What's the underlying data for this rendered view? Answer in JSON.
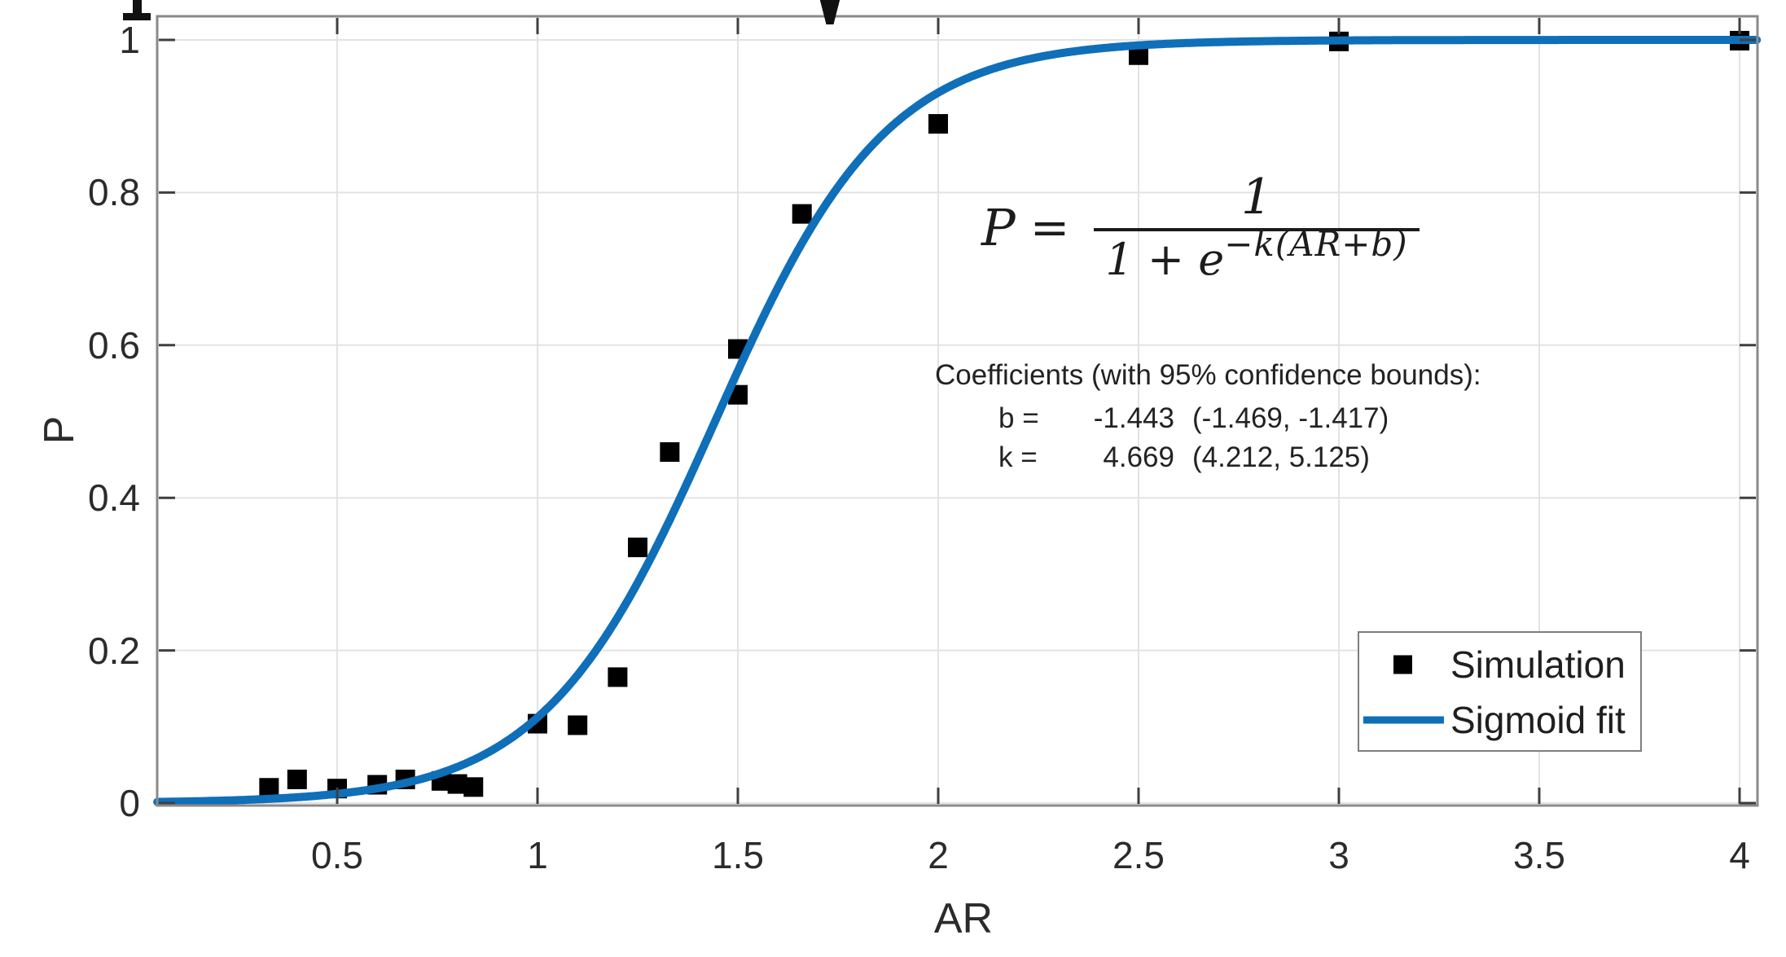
{
  "chart_data": {
    "type": "scatter",
    "title": "",
    "xlabel": "AR",
    "ylabel": "P",
    "grid": true,
    "xlim": [
      0.051,
      4.045
    ],
    "ylim": [
      0,
      1.03
    ],
    "x_ticks": [
      "0.5",
      "1",
      "1.5",
      "2",
      "2.5",
      "3",
      "3.5",
      "4"
    ],
    "x_tick_values": [
      0.5,
      1,
      1.5,
      2,
      2.5,
      3,
      3.5,
      4
    ],
    "y_ticks": [
      "0",
      "0.2",
      "0.4",
      "0.6",
      "0.8",
      "1"
    ],
    "y_tick_values": [
      0,
      0.2,
      0.4,
      0.6,
      0.8,
      1
    ],
    "colors": {
      "fit_line": "#0F6FB8",
      "marker": "#000000",
      "grid": "#e3e3e3",
      "axis_box": "#8a8a8a",
      "tick": "#3f3f3f",
      "text": "#2b2b2b"
    },
    "series": [
      {
        "name": "Simulation",
        "type": "scatter",
        "marker": "square",
        "points": [
          [
            0.33,
            0.02
          ],
          [
            0.4,
            0.031
          ],
          [
            0.5,
            0.019
          ],
          [
            0.6,
            0.024
          ],
          [
            0.67,
            0.031
          ],
          [
            0.76,
            0.029
          ],
          [
            0.8,
            0.025
          ],
          [
            0.84,
            0.021
          ],
          [
            1.0,
            0.104
          ],
          [
            1.1,
            0.102
          ],
          [
            1.2,
            0.165
          ],
          [
            1.25,
            0.335
          ],
          [
            1.33,
            0.46
          ],
          [
            1.5,
            0.535
          ],
          [
            1.5,
            0.595
          ],
          [
            1.66,
            0.772
          ],
          [
            2.0,
            0.89
          ],
          [
            2.5,
            0.98
          ],
          [
            3.0,
            0.998
          ],
          [
            4.0,
            0.999
          ]
        ]
      },
      {
        "name": "Sigmoid fit",
        "type": "line",
        "fit": {
          "k": 4.669,
          "b": -1.443
        }
      }
    ],
    "legend": {
      "position": "lower right",
      "items": [
        {
          "label": "Simulation",
          "swatch": "square"
        },
        {
          "label": "Sigmoid fit",
          "swatch": "line"
        }
      ]
    },
    "equation": {
      "lhs": "P",
      "equals": "=",
      "numerator": "1",
      "denominator": "1 + e",
      "exponent": "−k(AR+b)"
    },
    "coefficients": {
      "header": "Coefficients (with 95% confidence bounds):",
      "rows": [
        {
          "name": "b =",
          "value": "-1.443",
          "bounds": "(-1.469, -1.417)"
        },
        {
          "name": "k =",
          "value": "4.669",
          "bounds": "(4.212, 5.125)"
        }
      ]
    }
  }
}
